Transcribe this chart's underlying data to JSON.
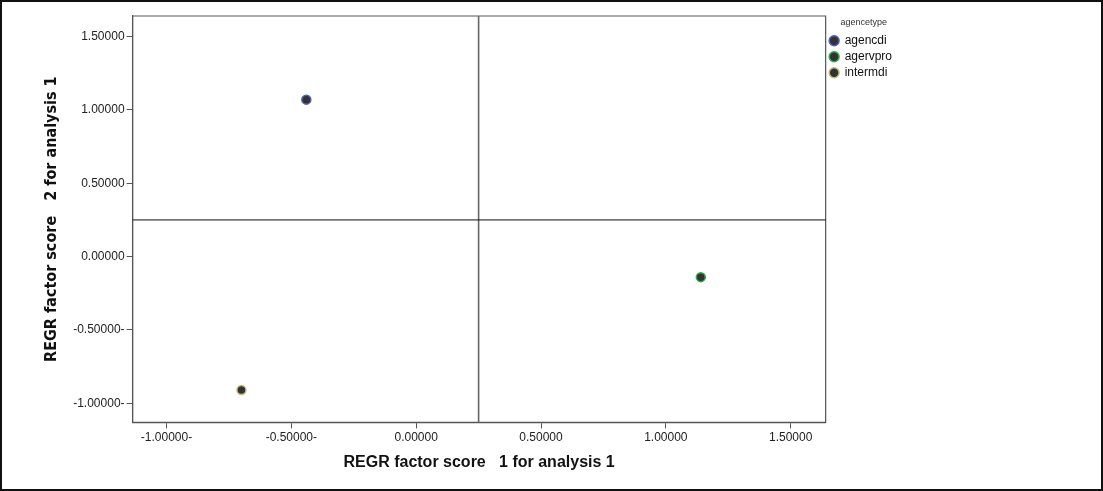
{
  "chart_data": {
    "type": "scatter",
    "xlabel": "REGR factor score   1 for analysis 1",
    "ylabel": "REGR factor score   2 for analysis 1",
    "legend_title": "agencetype",
    "legend": "top right",
    "marker": "circle",
    "xlim": [
      -1.136,
      1.64
    ],
    "ylim": [
      -1.13,
      1.64
    ],
    "xticks": [
      {
        "value": -1,
        "label": "-1.00000-"
      },
      {
        "value": -0.5,
        "label": "-0.50000-"
      },
      {
        "value": 0,
        "label": "0.00000"
      },
      {
        "value": 0.5,
        "label": "0.50000"
      },
      {
        "value": 1,
        "label": "1.00000"
      },
      {
        "value": 1.5,
        "label": "1.50000"
      }
    ],
    "yticks": [
      {
        "value": -1,
        "label": "-1.00000-"
      },
      {
        "value": -0.5,
        "label": "-0.50000-"
      },
      {
        "value": 0,
        "label": "0.00000"
      },
      {
        "value": 0.5,
        "label": "0.50000"
      },
      {
        "value": 1,
        "label": "1.00000"
      },
      {
        "value": 1.5,
        "label": "1.50000"
      }
    ],
    "ref_lines": [
      {
        "axis": "x",
        "value": 0.25,
        "color": "#666666"
      },
      {
        "axis": "y",
        "value": 0.25,
        "color": "#111111"
      }
    ],
    "series": [
      {
        "name": "agencdi",
        "color": "#4a62b8",
        "x": [
          -0.44
        ],
        "values": [
          1.07
        ]
      },
      {
        "name": "agervpro",
        "color": "#2fae48",
        "x": [
          1.14
        ],
        "values": [
          -0.14
        ]
      },
      {
        "name": "intermdi",
        "color": "#c9b87c",
        "x": [
          -0.7
        ],
        "values": [
          -0.91
        ]
      }
    ]
  }
}
